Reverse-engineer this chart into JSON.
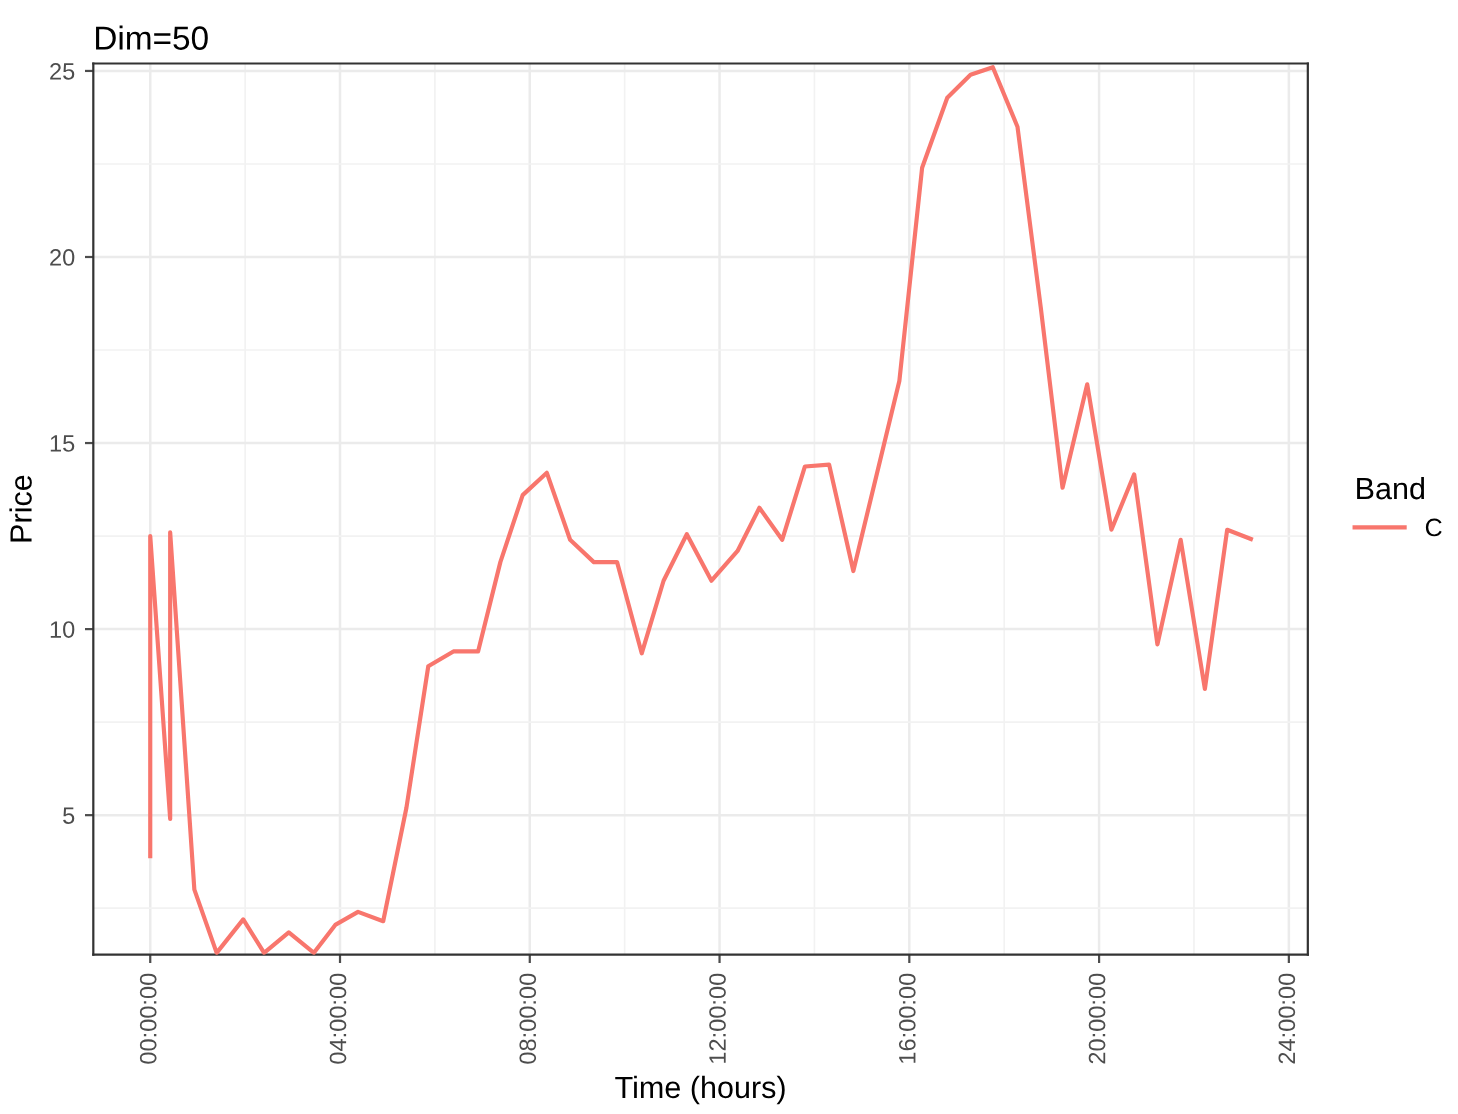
{
  "chart_data": {
    "type": "line",
    "title": "Dim=50",
    "xlabel": "Time (hours)",
    "ylabel": "Price",
    "legend_title": "Band",
    "series": [
      {
        "name": "C",
        "color": "#f8766d",
        "x": [
          0,
          0,
          0.42,
          0.42,
          0.93,
          1.4,
          1.96,
          2.4,
          2.92,
          3.45,
          3.9,
          4.38,
          4.91,
          5.4,
          5.86,
          6.39,
          6.91,
          7.38,
          7.85,
          8.36,
          8.85,
          9.35,
          9.84,
          10.36,
          10.82,
          11.31,
          11.83,
          12.38,
          12.84,
          13.32,
          13.8,
          14.31,
          14.82,
          15.79,
          16.27,
          16.8,
          17.29,
          17.76,
          18.28,
          18.77,
          19.23,
          19.75,
          20.26,
          20.74,
          21.23,
          21.72,
          22.23,
          22.7,
          23.2
        ],
        "values": [
          3.9,
          12.5,
          4.9,
          12.6,
          3.0,
          1.3,
          2.2,
          1.3,
          1.85,
          1.3,
          2.05,
          2.4,
          2.15,
          5.2,
          9.0,
          9.4,
          9.4,
          11.8,
          13.6,
          14.2,
          12.4,
          11.8,
          11.8,
          9.35,
          11.3,
          12.55,
          11.3,
          12.1,
          13.26,
          12.4,
          14.37,
          14.42,
          11.56,
          16.67,
          22.4,
          24.28,
          24.9,
          25.1,
          23.5,
          18.65,
          13.8,
          16.58,
          12.67,
          14.16,
          9.59,
          12.4,
          8.39,
          12.67,
          12.42
        ]
      }
    ],
    "xlim": [
      -1.2,
      24.4
    ],
    "ylim": [
      1.25,
      25.2
    ],
    "xticks": [
      {
        "value": 0,
        "label": "00:00:00"
      },
      {
        "value": 4,
        "label": "04:00:00"
      },
      {
        "value": 8,
        "label": "08:00:00"
      },
      {
        "value": 12,
        "label": "12:00:00"
      },
      {
        "value": 16,
        "label": "16:00:00"
      },
      {
        "value": 20,
        "label": "20:00:00"
      },
      {
        "value": 24,
        "label": "24:00:00"
      }
    ],
    "yticks": [
      5,
      10,
      15,
      20,
      25
    ],
    "grid": true,
    "legend": "right",
    "marker": "none",
    "line_style": "solid"
  }
}
